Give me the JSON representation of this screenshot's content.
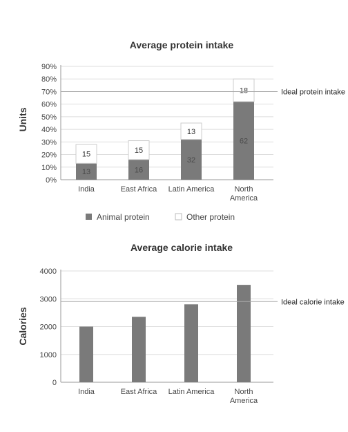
{
  "chart_data": [
    {
      "type": "bar",
      "stacked": true,
      "title": "Average protein intake",
      "xlabel": "",
      "ylabel": "Units",
      "ylim": [
        0,
        90
      ],
      "yticks": [
        "0%",
        "10%",
        "20%",
        "30%",
        "40%",
        "50%",
        "60%",
        "70%",
        "80%",
        "90%"
      ],
      "grid": true,
      "categories": [
        "India",
        "East Africa",
        "Latin America",
        "North America"
      ],
      "series": [
        {
          "name": "Animal protein",
          "values": [
            13,
            16,
            32,
            62
          ],
          "color": "#7a7a7a"
        },
        {
          "name": "Other protein",
          "values": [
            15,
            15,
            13,
            18
          ],
          "color": "#ffffff"
        }
      ],
      "reference_line": {
        "label": "Ideal protein intake",
        "value": 70
      },
      "legend": "bottom"
    },
    {
      "type": "bar",
      "title": "Average calorie intake",
      "xlabel": "",
      "ylabel": "Calories",
      "ylim": [
        0,
        4000
      ],
      "yticks": [
        "0",
        "1000",
        "2000",
        "3000",
        "4000"
      ],
      "grid": true,
      "categories": [
        "India",
        "East Africa",
        "Latin America",
        "North America"
      ],
      "series": [
        {
          "values": [
            2000,
            2350,
            2800,
            3500
          ],
          "color": "#7a7a7a"
        }
      ],
      "reference_line": {
        "label": "Ideal calorie intake",
        "value": 2900
      }
    }
  ],
  "colors": {
    "bar": "#7a7a7a",
    "grid": "#dddddd",
    "axis": "#999999",
    "ideal_line": "#aaaaaa"
  }
}
